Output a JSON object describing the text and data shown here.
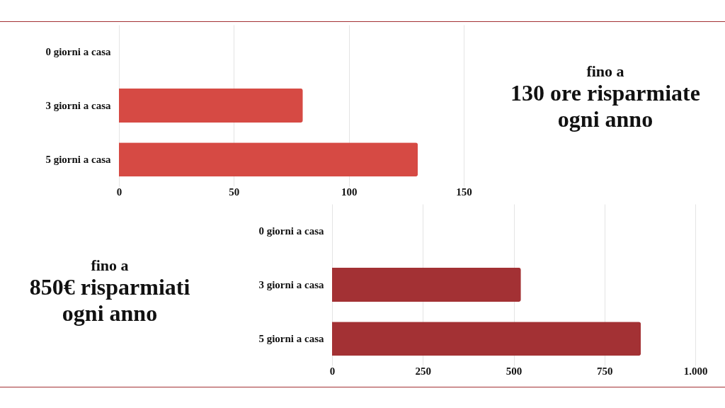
{
  "chart_data": [
    {
      "type": "bar",
      "orientation": "horizontal",
      "categories": [
        "0 giorni a casa",
        "3 giorni a casa",
        "5 giorni a casa"
      ],
      "values": [
        0,
        80,
        130
      ],
      "color": "#d64a44",
      "xlim": [
        0,
        150
      ],
      "xticks": [
        0,
        50,
        100,
        150
      ],
      "grid": "x",
      "annotations": [
        "fino a",
        "130 ore risparmiate",
        "ogni anno"
      ]
    },
    {
      "type": "bar",
      "orientation": "horizontal",
      "categories": [
        "0 giorni a casa",
        "3 giorni a casa",
        "5 giorni a casa"
      ],
      "values": [
        0,
        520,
        850
      ],
      "color": "#a33134",
      "xlim": [
        0,
        1000
      ],
      "xticks": [
        0,
        250,
        500,
        750,
        {
          "value": 1000,
          "label": "1.000"
        }
      ],
      "grid": "x",
      "annotations": [
        "fino a",
        "850€ risparmiati",
        "ogni anno"
      ]
    }
  ]
}
